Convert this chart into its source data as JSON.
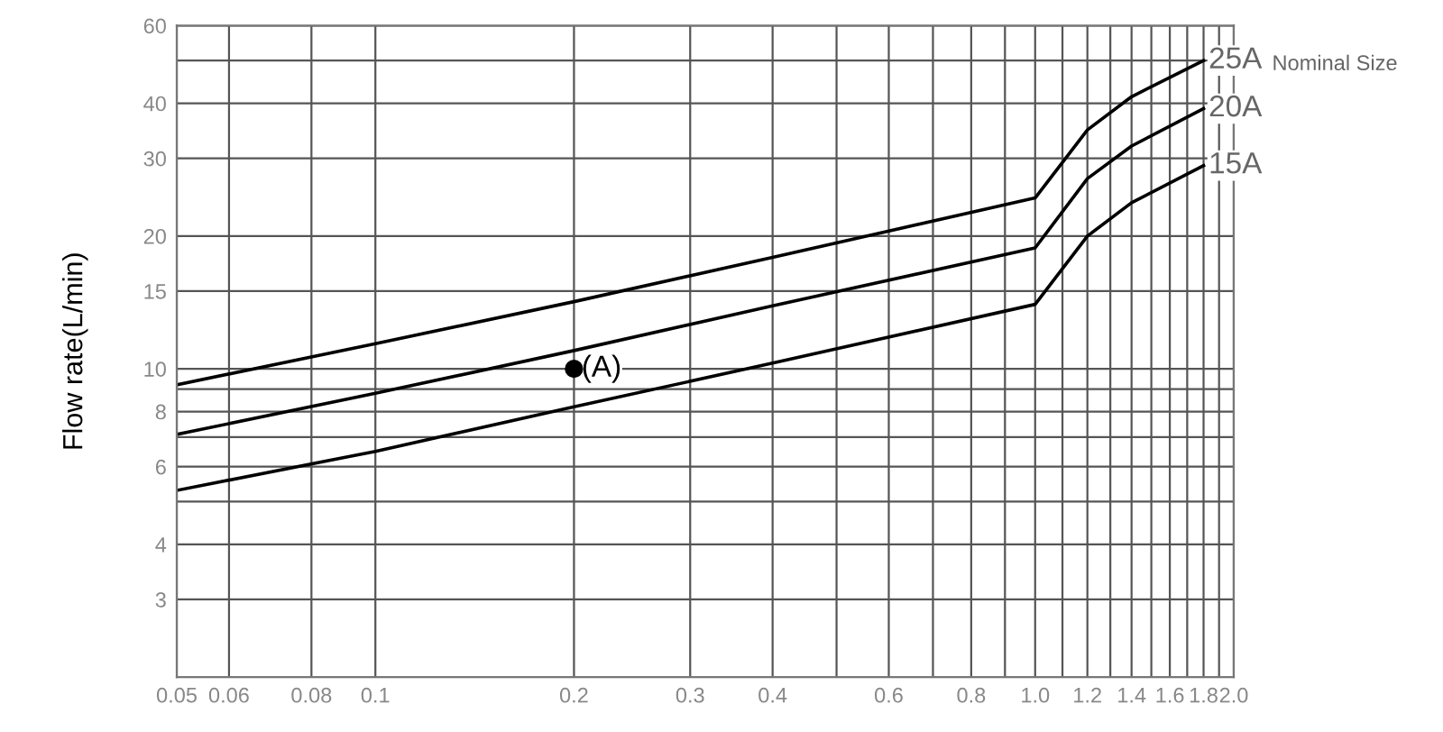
{
  "chart_data": {
    "type": "line",
    "ylabel": "Flow rate(L/min)",
    "legend_title": "Nominal Size",
    "log": "xy",
    "grid": true,
    "legend": false,
    "line_style": "solid",
    "marker": "none",
    "xlim": [
      0.05,
      2.0
    ],
    "ylim": [
      2,
      60
    ],
    "xticks": [
      0.05,
      0.06,
      0.08,
      {
        "value": 0.1,
        "label": "0.1"
      },
      {
        "value": 0.2,
        "label": "0.2"
      },
      {
        "value": 0.3,
        "label": "0.3"
      },
      {
        "value": 0.4,
        "label": "0.4"
      },
      {
        "value": 0.5,
        "label": null
      },
      {
        "value": 0.6,
        "label": "0.6"
      },
      {
        "value": 0.7,
        "label": null
      },
      {
        "value": 0.8,
        "label": "0.8"
      },
      {
        "value": 0.9,
        "label": null
      },
      {
        "value": 1.0,
        "label": "1.0"
      },
      {
        "value": 1.1,
        "label": null
      },
      {
        "value": 1.2,
        "label": "1.2"
      },
      {
        "value": 1.3,
        "label": null
      },
      {
        "value": 1.4,
        "label": "1.4"
      },
      {
        "value": 1.5,
        "label": null
      },
      {
        "value": 1.6,
        "label": "1.6"
      },
      {
        "value": 1.7,
        "label": null
      },
      {
        "value": 1.8,
        "label": "1.8"
      },
      {
        "value": 1.9,
        "label": null
      },
      {
        "value": 2.0,
        "label": "2.0"
      }
    ],
    "yticks": [
      3,
      4,
      {
        "value": 5,
        "label": null
      },
      6,
      {
        "value": 7,
        "label": null
      },
      8,
      {
        "value": 9,
        "label": null
      },
      10,
      15,
      20,
      30,
      40,
      {
        "value": 50,
        "label": null
      },
      60
    ],
    "x": [
      0.05,
      0.1,
      0.2,
      0.4,
      1.0,
      1.2,
      1.4,
      1.8
    ],
    "series": [
      {
        "name": "25A",
        "color": "#000000",
        "values": [
          9.2,
          11.4,
          14.2,
          17.9,
          24.4,
          34.8,
          41.4,
          50
        ]
      },
      {
        "name": "20A",
        "color": "#000000",
        "values": [
          7.1,
          8.8,
          11.0,
          13.9,
          18.8,
          27,
          32,
          38.9
        ]
      },
      {
        "name": "15A",
        "color": "#000000",
        "values": [
          5.3,
          6.5,
          8.2,
          10.3,
          14.0,
          20.0,
          23.8,
          28.9
        ]
      },
      {
        "name": "(A)",
        "type": "scatter",
        "marker": "circle",
        "color": "#000000",
        "x": [
          0.2
        ],
        "values": [
          10
        ]
      }
    ]
  }
}
